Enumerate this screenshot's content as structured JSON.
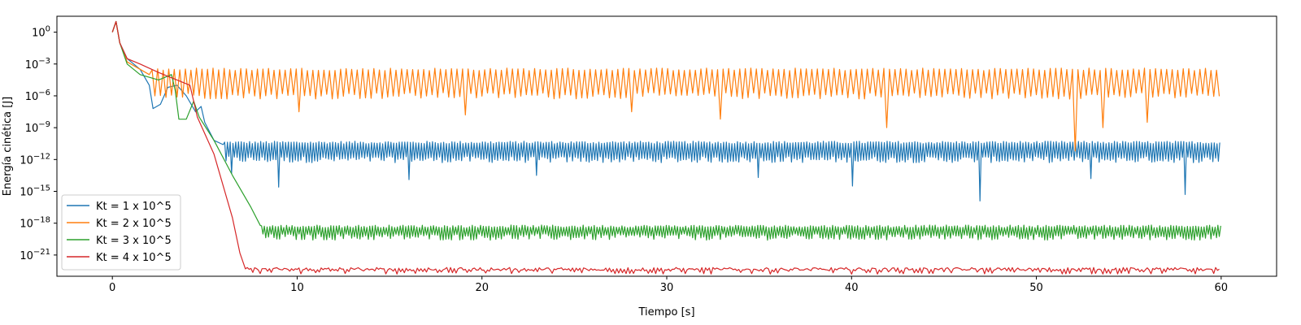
{
  "chart_data": {
    "type": "line",
    "title": "",
    "xlabel": "Tiempo [s]",
    "ylabel": "Energía cinética [J]",
    "xlim": [
      -3,
      63
    ],
    "ylim_exponent": [
      -23,
      1.5
    ],
    "y_scale": "log",
    "x_ticks": [
      0,
      10,
      20,
      30,
      40,
      50,
      60
    ],
    "x_tick_labels": [
      "0",
      "10",
      "20",
      "30",
      "40",
      "50",
      "60"
    ],
    "y_tick_exponents": [
      0,
      -3,
      -6,
      -9,
      -12,
      -15,
      -18,
      -21
    ],
    "y_tick_labels": [
      {
        "base": "10",
        "exp": "0"
      },
      {
        "base": "10",
        "exp": "−3"
      },
      {
        "base": "10",
        "exp": "−6"
      },
      {
        "base": "10",
        "exp": "−9"
      },
      {
        "base": "10",
        "exp": "−12"
      },
      {
        "base": "10",
        "exp": "−15"
      },
      {
        "base": "10",
        "exp": "−18"
      },
      {
        "base": "10",
        "exp": "−21"
      }
    ],
    "grid": false,
    "legend_position": "lower-left",
    "series": [
      {
        "name": "Kt = 1 x 10^5",
        "color": "#1f77b4",
        "transient": [
          [
            0,
            0
          ],
          [
            0.2,
            1
          ],
          [
            0.4,
            -1
          ],
          [
            0.8,
            -2.5
          ],
          [
            1.5,
            -3.5
          ],
          [
            2.0,
            -5
          ],
          [
            2.2,
            -7.2
          ],
          [
            2.6,
            -6.8
          ],
          [
            3.0,
            -5.2
          ],
          [
            3.5,
            -5
          ],
          [
            4.0,
            -6
          ],
          [
            4.5,
            -7.5
          ],
          [
            4.8,
            -7.0
          ],
          [
            5.0,
            -8.5
          ],
          [
            5.5,
            -10.2
          ],
          [
            6.0,
            -10.6
          ]
        ],
        "steady_level_exp": -10.4,
        "osc_low_exp": -12.0,
        "osc_period_s": 0.15,
        "dips": [
          [
            6.5,
            -13.3
          ],
          [
            9.0,
            -14.6
          ],
          [
            16.0,
            -13.9
          ],
          [
            23.0,
            -13.5
          ],
          [
            35.0,
            -13.7
          ],
          [
            40.0,
            -14.5
          ],
          [
            47.0,
            -15.9
          ],
          [
            53.0,
            -13.8
          ],
          [
            58.0,
            -15.3
          ]
        ]
      },
      {
        "name": "Kt = 2 x 10^5",
        "color": "#ff7f0e",
        "transient": [
          [
            0,
            0
          ],
          [
            0.2,
            1
          ],
          [
            0.4,
            -1
          ],
          [
            0.8,
            -2.8
          ],
          [
            1.5,
            -3.5
          ],
          [
            2.0,
            -4
          ]
        ],
        "steady_level_exp": -3.5,
        "osc_low_exp": -6.0,
        "osc_period_s": 0.3,
        "dips": [
          [
            10.0,
            -7.5
          ],
          [
            19.0,
            -7.8
          ],
          [
            28.0,
            -7.5
          ],
          [
            33.0,
            -8.2
          ],
          [
            42.0,
            -9.0
          ],
          [
            52.0,
            -11.2
          ],
          [
            53.5,
            -9.0
          ],
          [
            56.0,
            -8.5
          ]
        ]
      },
      {
        "name": "Kt = 3 x 10^5",
        "color": "#2ca02c",
        "transient": [
          [
            0,
            0
          ],
          [
            0.2,
            1
          ],
          [
            0.4,
            -1
          ],
          [
            0.8,
            -3.0
          ],
          [
            1.5,
            -4.0
          ],
          [
            2.5,
            -4.5
          ],
          [
            3.2,
            -4.0
          ],
          [
            3.4,
            -5.5
          ],
          [
            3.6,
            -8.2
          ],
          [
            4.0,
            -8.2
          ],
          [
            4.4,
            -6.5
          ],
          [
            4.7,
            -8.0
          ],
          [
            5.5,
            -10.2
          ],
          [
            6.5,
            -13.5
          ],
          [
            7.5,
            -16.5
          ],
          [
            8.0,
            -18.2
          ]
        ],
        "steady_level_exp": -18.3,
        "osc_low_exp": -19.3,
        "osc_period_s": 0.15,
        "dips": []
      },
      {
        "name": "Kt = 4 x 10^5",
        "color": "#d62728",
        "transient": [
          [
            0,
            0
          ],
          [
            0.2,
            1
          ],
          [
            0.4,
            -1
          ],
          [
            0.8,
            -2.5
          ],
          [
            1.5,
            -3.0
          ],
          [
            2.5,
            -3.8
          ],
          [
            3.5,
            -4.5
          ],
          [
            4.2,
            -5.0
          ],
          [
            4.6,
            -8.0
          ],
          [
            5.5,
            -11.5
          ],
          [
            6.5,
            -17.5
          ],
          [
            6.9,
            -20.8
          ],
          [
            7.2,
            -22.3
          ]
        ],
        "steady_level_exp": -22.3,
        "osc_low_exp": -22.5,
        "osc_period_s": 0.2,
        "dips": []
      }
    ]
  }
}
